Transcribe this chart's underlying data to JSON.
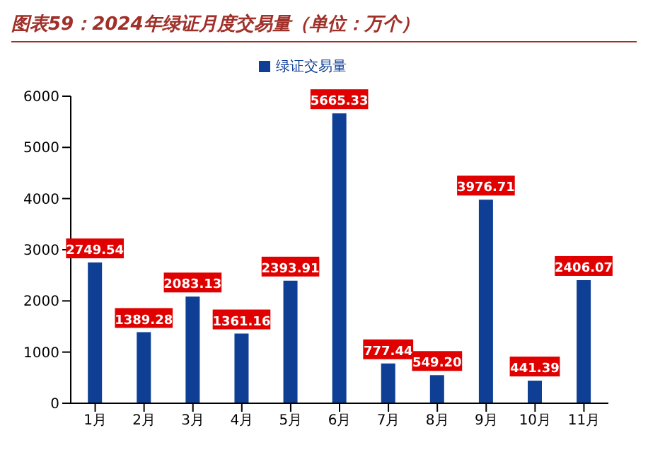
{
  "chart_data": {
    "type": "bar",
    "title": "图表59：2024年绿证月度交易量（单位：万个）",
    "categories": [
      "1月",
      "2月",
      "3月",
      "4月",
      "5月",
      "6月",
      "7月",
      "8月",
      "9月",
      "10月",
      "11月"
    ],
    "series": [
      {
        "name": "绿证交易量",
        "color": "#0e3f94",
        "values": [
          2749.54,
          1389.28,
          2083.13,
          1361.16,
          2393.91,
          5665.33,
          777.44,
          549.2,
          3976.71,
          441.39,
          2406.07
        ]
      }
    ],
    "value_labels": [
      "2749.54",
      "1389.28",
      "2083.13",
      "1361.16",
      "2393.91",
      "5665.33",
      "777.44",
      "549.20",
      "3976.71",
      "441.39",
      "2406.07"
    ],
    "ylim": [
      0,
      6000
    ],
    "yticks": [
      0,
      1000,
      2000,
      3000,
      4000,
      5000,
      6000
    ],
    "grid": false,
    "legend": "top"
  }
}
